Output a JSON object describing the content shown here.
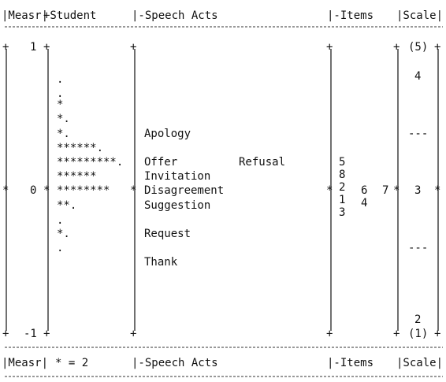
{
  "header": {
    "measr": "|Measr|",
    "student": "+Student",
    "speech_acts": "|-Speech Acts",
    "items": "|-Items",
    "scale": "|Scale|"
  },
  "footer": {
    "measr": "|Measr|",
    "student": "* = 2",
    "speech_acts": "|-Speech Acts",
    "items": "|-Items",
    "scale": "|Scale|"
  },
  "measure": {
    "top": "1",
    "zero": "0",
    "bottom": "-1"
  },
  "markers": {
    "plus": "+",
    "star": "*"
  },
  "student_rows": [
    ".",
    ".",
    "*",
    "*.",
    "*.",
    "******.",
    "*********.",
    "******",
    "********",
    "**.",
    ".",
    "*.",
    "."
  ],
  "speech_acts": {
    "apology": "Apology",
    "offer": "Offer",
    "refusal": "Refusal",
    "invitation": "Invitation",
    "disagreement": "Disagreement",
    "suggestion": "Suggestion",
    "request": "Request",
    "thank": "Thank"
  },
  "items": {
    "col1": [
      "5",
      "8",
      "2",
      "1",
      "3"
    ],
    "col2": [
      "6",
      "4"
    ],
    "col3": [
      "7"
    ]
  },
  "scale": {
    "top": "(5)",
    "four": "4",
    "sep1": "---",
    "three": "3",
    "sep2": "---",
    "two": "2",
    "bottom": "(1)"
  }
}
